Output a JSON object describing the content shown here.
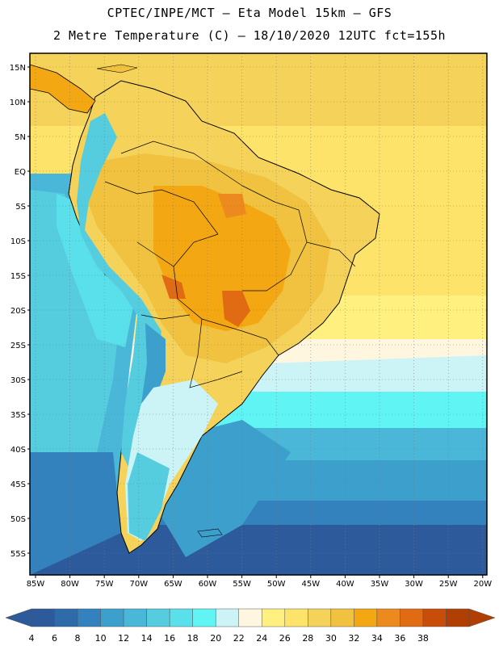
{
  "header": {
    "title_line1": "CPTEC/INPE/MCT –  Eta Model 15km – GFS",
    "title_line2": "2 Metre Temperature (C) – 18/10/2020 12UTC fct=155h"
  },
  "map": {
    "lon_labels": [
      "85W",
      "80W",
      "75W",
      "70W",
      "65W",
      "60W",
      "55W",
      "50W",
      "45W",
      "40W",
      "35W",
      "30W",
      "25W",
      "20W"
    ],
    "lat_labels": [
      "15N",
      "10N",
      "5N",
      "EQ",
      "5S",
      "10S",
      "15S",
      "20S",
      "25S",
      "30S",
      "35S",
      "40S",
      "45S",
      "50S",
      "55S"
    ],
    "grid": "dotted"
  },
  "colorbar": {
    "levels": [
      "4",
      "6",
      "8",
      "10",
      "12",
      "14",
      "16",
      "18",
      "20",
      "22",
      "24",
      "26",
      "28",
      "30",
      "32",
      "34",
      "36",
      "38"
    ],
    "colors": [
      "#2d5a9a",
      "#2f6aa9",
      "#3381bd",
      "#3d9fcb",
      "#4bb7d8",
      "#56ccdf",
      "#5ae0ea",
      "#61f4f4",
      "#ccf4f6",
      "#fff6e0",
      "#fff07f",
      "#fde36a",
      "#f5d35a",
      "#f0c23f",
      "#f2a713",
      "#ec8a1f",
      "#e16b12",
      "#c84d08",
      "#b13f03"
    ],
    "low_arrow_color": "#2d5a9a",
    "high_arrow_color": "#b13f03"
  },
  "palette": {
    "ocean_deep": "#2d5a9a",
    "ocean_mid": "#3381bd",
    "ocean_light": "#3d9fcb",
    "ocean_cyan": "#61f4f4",
    "ocean_pale": "#ccf4f6",
    "warm_pale": "#fff6e0",
    "warm_yellow": "#fde36a",
    "warm_gold": "#f5d35a",
    "warm_orange": "#f0c23f",
    "hot_orange": "#f2a713",
    "hot_red": "#e16b12"
  }
}
